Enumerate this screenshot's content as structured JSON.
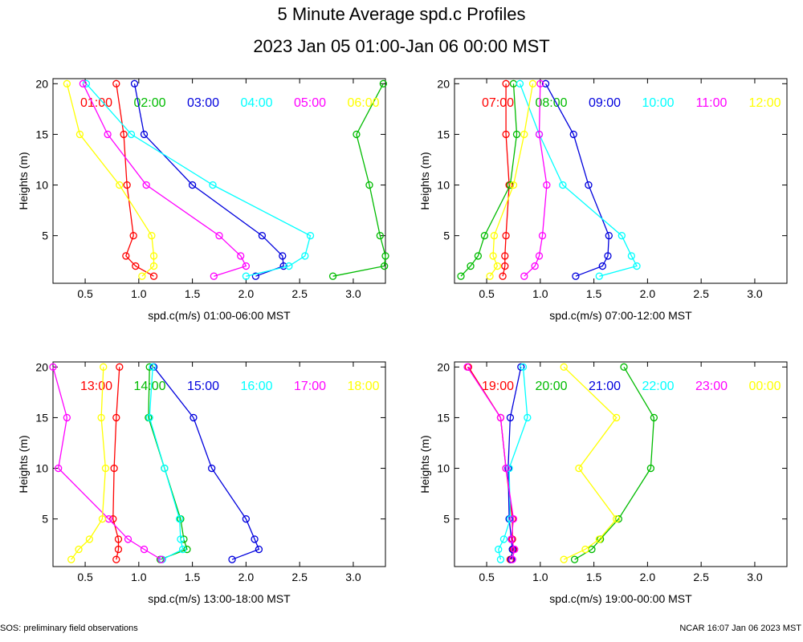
{
  "title": "5 Minute Average spd.c Profiles",
  "subtitle": "2023 Jan 05 01:00-Jan 06 00:00 MST",
  "footer_left": "SOS: preliminary field observations",
  "footer_right": "NCAR 16:07 Jan 06 2023 MST",
  "colors": [
    "#ff0000",
    "#00bb00",
    "#0000dd",
    "#00ffff",
    "#ff00ff",
    "#ffff00"
  ],
  "chart_data": [
    {
      "type": "line",
      "xlabel": "spd.c(m/s) 01:00-06:00 MST",
      "ylabel": "Heights (m)",
      "xlim": [
        0.2,
        3.3
      ],
      "ylim": [
        0.3,
        20.5
      ],
      "xticks": [
        0.5,
        1.0,
        1.5,
        2.0,
        2.5,
        3.0
      ],
      "xtick_labels": [
        "0.5",
        "1.0",
        "1.5",
        "2.0",
        "2.5",
        "3.0"
      ],
      "yticks": [
        5,
        10,
        15,
        20
      ],
      "ytick_labels": [
        "5",
        "10",
        "15",
        "20"
      ],
      "heights": [
        1,
        2,
        3,
        5,
        10,
        15,
        20
      ],
      "series": [
        {
          "name": "01:00",
          "values": [
            1.14,
            0.97,
            0.88,
            0.95,
            0.89,
            0.86,
            0.79
          ]
        },
        {
          "name": "02:00",
          "values": [
            2.81,
            3.29,
            3.3,
            3.25,
            3.15,
            3.03,
            3.28
          ]
        },
        {
          "name": "03:00",
          "values": [
            2.09,
            2.35,
            2.34,
            2.15,
            1.5,
            1.05,
            0.96
          ]
        },
        {
          "name": "04:00",
          "values": [
            2.0,
            2.4,
            2.55,
            2.6,
            1.69,
            0.93,
            0.51
          ]
        },
        {
          "name": "05:00",
          "values": [
            1.7,
            2.0,
            1.95,
            1.75,
            1.07,
            0.71,
            0.48
          ]
        },
        {
          "name": "06:00",
          "values": [
            1.03,
            1.14,
            1.14,
            1.12,
            0.82,
            0.45,
            0.33
          ]
        }
      ]
    },
    {
      "type": "line",
      "xlabel": "spd.c(m/s) 07:00-12:00 MST",
      "ylabel": "Heights (m)",
      "xlim": [
        0.2,
        3.3
      ],
      "ylim": [
        0.3,
        20.5
      ],
      "xticks": [
        0.5,
        1.0,
        1.5,
        2.0,
        2.5,
        3.0
      ],
      "xtick_labels": [
        "0.5",
        "1.0",
        "1.5",
        "2.0",
        "2.5",
        "3.0"
      ],
      "yticks": [
        5,
        10,
        15,
        20
      ],
      "ytick_labels": [
        "5",
        "10",
        "15",
        "20"
      ],
      "heights": [
        1,
        2,
        3,
        5,
        10,
        15,
        20
      ],
      "series": [
        {
          "name": "07:00",
          "values": [
            0.65,
            0.67,
            0.67,
            0.68,
            0.71,
            0.68,
            0.68
          ]
        },
        {
          "name": "08:00",
          "values": [
            0.26,
            0.35,
            0.42,
            0.48,
            0.72,
            0.78,
            0.75
          ]
        },
        {
          "name": "09:00",
          "values": [
            1.33,
            1.58,
            1.63,
            1.64,
            1.45,
            1.31,
            1.05
          ]
        },
        {
          "name": "10:00",
          "values": [
            1.55,
            1.9,
            1.85,
            1.76,
            1.21,
            0.99,
            0.81
          ]
        },
        {
          "name": "11:00",
          "values": [
            0.85,
            0.95,
            0.99,
            1.02,
            1.06,
            0.99,
            1.0
          ]
        },
        {
          "name": "12:00",
          "values": [
            0.53,
            0.6,
            0.56,
            0.57,
            0.75,
            0.85,
            0.93
          ]
        }
      ]
    },
    {
      "type": "line",
      "xlabel": "spd.c(m/s) 13:00-18:00 MST",
      "ylabel": "Heights (m)",
      "xlim": [
        0.2,
        3.3
      ],
      "ylim": [
        0.3,
        20.5
      ],
      "xticks": [
        0.5,
        1.0,
        1.5,
        2.0,
        2.5,
        3.0
      ],
      "xtick_labels": [
        "0.5",
        "1.0",
        "1.5",
        "2.0",
        "2.5",
        "3.0"
      ],
      "yticks": [
        5,
        10,
        15,
        20
      ],
      "ytick_labels": [
        "5",
        "10",
        "15",
        "20"
      ],
      "heights": [
        1,
        2,
        3,
        5,
        10,
        15,
        20
      ],
      "series": [
        {
          "name": "13:00",
          "values": [
            0.79,
            0.81,
            0.81,
            0.76,
            0.77,
            0.79,
            0.82
          ]
        },
        {
          "name": "14:00",
          "values": [
            1.2,
            1.45,
            1.42,
            1.39,
            1.24,
            1.09,
            1.1
          ]
        },
        {
          "name": "15:00",
          "values": [
            1.87,
            2.12,
            2.08,
            2.0,
            1.68,
            1.51,
            1.14
          ]
        },
        {
          "name": "16:00",
          "values": [
            1.22,
            1.41,
            1.39,
            1.38,
            1.24,
            1.1,
            1.13
          ]
        },
        {
          "name": "17:00",
          "values": [
            1.21,
            1.05,
            0.9,
            0.72,
            0.25,
            0.33,
            0.2
          ]
        },
        {
          "name": "18:00",
          "values": [
            0.37,
            0.44,
            0.54,
            0.66,
            0.69,
            0.65,
            0.67
          ]
        }
      ]
    },
    {
      "type": "line",
      "xlabel": "spd.c(m/s) 19:00-00:00 MST",
      "ylabel": "Heights (m)",
      "xlim": [
        0.2,
        3.3
      ],
      "ylim": [
        0.3,
        20.5
      ],
      "xticks": [
        0.5,
        1.0,
        1.5,
        2.0,
        2.5,
        3.0
      ],
      "xtick_labels": [
        "0.5",
        "1.0",
        "1.5",
        "2.0",
        "2.5",
        "3.0"
      ],
      "yticks": [
        5,
        10,
        15,
        20
      ],
      "ytick_labels": [
        "5",
        "10",
        "15",
        "20"
      ],
      "heights": [
        1,
        2,
        3,
        5,
        10,
        15,
        20
      ],
      "series": [
        {
          "name": "19:00",
          "values": [
            0.72,
            0.75,
            0.74,
            0.74,
            0.68,
            0.63,
            0.33
          ]
        },
        {
          "name": "20:00",
          "values": [
            1.32,
            1.48,
            1.56,
            1.73,
            2.03,
            2.06,
            1.78
          ]
        },
        {
          "name": "21:00",
          "values": [
            0.73,
            0.74,
            0.73,
            0.71,
            0.7,
            0.72,
            0.82
          ]
        },
        {
          "name": "22:00",
          "values": [
            0.63,
            0.61,
            0.66,
            0.72,
            0.71,
            0.88,
            0.84
          ]
        },
        {
          "name": "23:00",
          "values": [
            0.74,
            0.76,
            0.73,
            0.75,
            0.68,
            0.63,
            0.32
          ]
        },
        {
          "name": "00:00",
          "values": [
            1.22,
            1.42,
            1.55,
            1.71,
            1.36,
            1.71,
            1.22
          ]
        }
      ]
    }
  ]
}
